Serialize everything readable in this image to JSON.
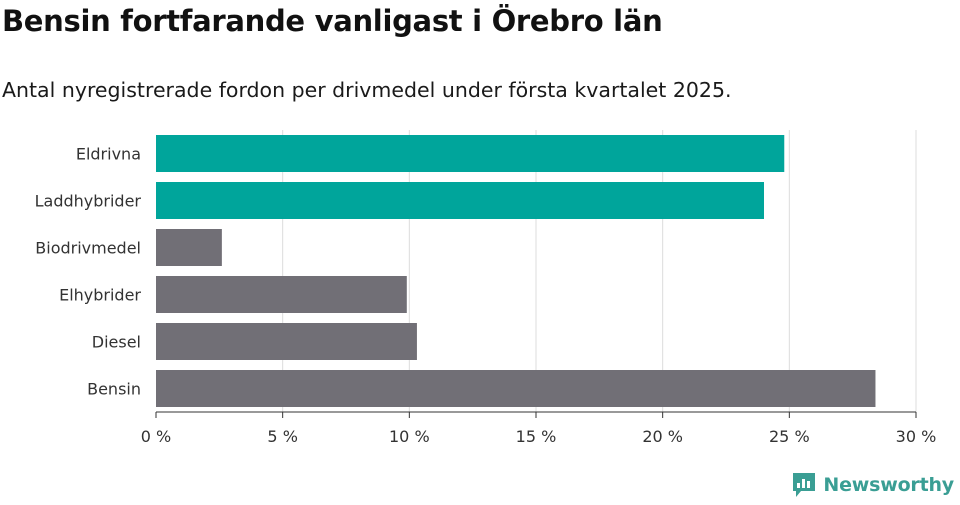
{
  "header": {
    "title": "Bensin fortfarande vanligast i Örebro län",
    "subtitle": "Antal nyregistrerade fordon per drivmedel under första kvartalet 2025."
  },
  "brand": {
    "name": "Newsworthy",
    "logo_icon": "bar-chart-logo-icon",
    "color": "#3a9e94"
  },
  "colors": {
    "highlight": "#00a59b",
    "default": "#716f76",
    "grid": "#dcdcdc",
    "axis": "#333333"
  },
  "chart_data": {
    "type": "bar",
    "orientation": "horizontal",
    "categories": [
      "Eldrivna",
      "Laddhybrider",
      "Biodrivmedel",
      "Elhybrider",
      "Diesel",
      "Bensin"
    ],
    "values": [
      24.8,
      24.0,
      2.6,
      9.9,
      10.3,
      28.4
    ],
    "highlighted": [
      true,
      true,
      false,
      false,
      false,
      false
    ],
    "xlim": [
      0,
      30
    ],
    "xticks": [
      0,
      5,
      10,
      15,
      20,
      25,
      30
    ],
    "xtick_labels": [
      "0 %",
      "5 %",
      "10 %",
      "15 %",
      "20 %",
      "25 %",
      "30 %"
    ],
    "unit": "%",
    "grid": true,
    "legend": "none"
  }
}
